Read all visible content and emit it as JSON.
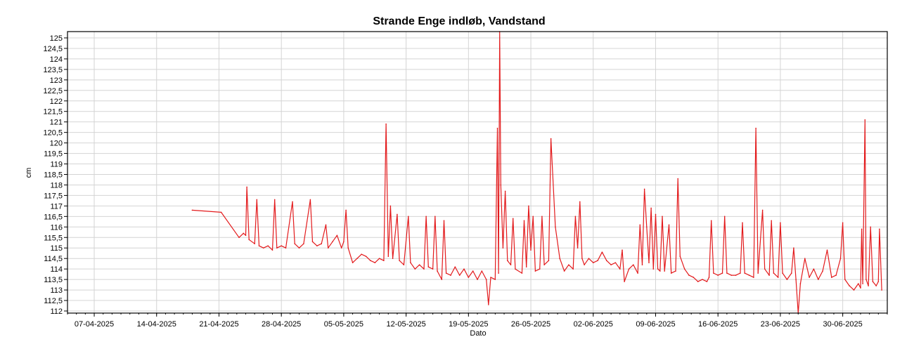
{
  "chart_data": {
    "type": "line",
    "title": "Strande Enge indløb, Vandstand",
    "xlabel": "Dato",
    "ylabel": "cm",
    "x_type": "date",
    "xlim": [
      "2025-04-04",
      "2025-07-05"
    ],
    "ylim": [
      111.9,
      125.3
    ],
    "grid": true,
    "legend": "none",
    "line_color": "#e31a1c",
    "x_ticks": [
      {
        "date": "2025-04-07",
        "label": "07-04-2025"
      },
      {
        "date": "2025-04-14",
        "label": "14-04-2025"
      },
      {
        "date": "2025-04-21",
        "label": "21-04-2025"
      },
      {
        "date": "2025-04-28",
        "label": "28-04-2025"
      },
      {
        "date": "2025-05-05",
        "label": "05-05-2025"
      },
      {
        "date": "2025-05-12",
        "label": "12-05-2025"
      },
      {
        "date": "2025-05-19",
        "label": "19-05-2025"
      },
      {
        "date": "2025-05-26",
        "label": "26-05-2025"
      },
      {
        "date": "2025-06-02",
        "label": "02-06-2025"
      },
      {
        "date": "2025-06-09",
        "label": "09-06-2025"
      },
      {
        "date": "2025-06-16",
        "label": "16-06-2025"
      },
      {
        "date": "2025-06-23",
        "label": "23-06-2025"
      },
      {
        "date": "2025-06-30",
        "label": "30-06-2025"
      }
    ],
    "y_ticks": [
      {
        "value": 112,
        "label": "112"
      },
      {
        "value": 112.5,
        "label": "112,5"
      },
      {
        "value": 113,
        "label": "113"
      },
      {
        "value": 113.5,
        "label": "113,5"
      },
      {
        "value": 114,
        "label": "114"
      },
      {
        "value": 114.5,
        "label": "114,5"
      },
      {
        "value": 115,
        "label": "115"
      },
      {
        "value": 115.5,
        "label": "115,5"
      },
      {
        "value": 116,
        "label": "116"
      },
      {
        "value": 116.5,
        "label": "116,5"
      },
      {
        "value": 117,
        "label": "117"
      },
      {
        "value": 117.5,
        "label": "117,5"
      },
      {
        "value": 118,
        "label": "118"
      },
      {
        "value": 118.5,
        "label": "118,5"
      },
      {
        "value": 119,
        "label": "119"
      },
      {
        "value": 119.5,
        "label": "119,5"
      },
      {
        "value": 120,
        "label": "120"
      },
      {
        "value": 120.5,
        "label": "120,5"
      },
      {
        "value": 121,
        "label": "121"
      },
      {
        "value": 121.5,
        "label": "121,5"
      },
      {
        "value": 122,
        "label": "122"
      },
      {
        "value": 122.5,
        "label": "122,5"
      },
      {
        "value": 123,
        "label": "123"
      },
      {
        "value": 123.5,
        "label": "123,5"
      },
      {
        "value": 124,
        "label": "124"
      },
      {
        "value": 124.5,
        "label": "124,5"
      },
      {
        "value": 125,
        "label": "125"
      }
    ],
    "series": [
      {
        "points": [
          [
            "2025-04-18 00:00",
            116.8
          ],
          [
            "2025-04-21 06:00",
            116.7
          ],
          [
            "2025-04-23 06:00",
            115.5
          ],
          [
            "2025-04-23 18:00",
            115.7
          ],
          [
            "2025-04-24 00:00",
            115.6
          ],
          [
            "2025-04-24 03:00",
            117.9
          ],
          [
            "2025-04-24 09:00",
            115.4
          ],
          [
            "2025-04-25 00:00",
            115.2
          ],
          [
            "2025-04-25 06:00",
            117.3
          ],
          [
            "2025-04-25 12:00",
            115.1
          ],
          [
            "2025-04-26 00:00",
            115.0
          ],
          [
            "2025-04-26 12:00",
            115.1
          ],
          [
            "2025-04-27 00:00",
            114.9
          ],
          [
            "2025-04-27 06:00",
            117.3
          ],
          [
            "2025-04-27 12:00",
            115.0
          ],
          [
            "2025-04-28 00:00",
            115.1
          ],
          [
            "2025-04-28 12:00",
            115.0
          ],
          [
            "2025-04-29 06:00",
            117.2
          ],
          [
            "2025-04-29 12:00",
            115.2
          ],
          [
            "2025-04-30 00:00",
            115.0
          ],
          [
            "2025-04-30 12:00",
            115.2
          ],
          [
            "2025-05-01 06:00",
            117.3
          ],
          [
            "2025-05-01 12:00",
            115.3
          ],
          [
            "2025-05-02 00:00",
            115.1
          ],
          [
            "2025-05-02 12:00",
            115.2
          ],
          [
            "2025-05-03 00:00",
            116.1
          ],
          [
            "2025-05-03 06:00",
            115.0
          ],
          [
            "2025-05-03 18:00",
            115.3
          ],
          [
            "2025-05-04 06:00",
            115.6
          ],
          [
            "2025-05-04 18:00",
            115.0
          ],
          [
            "2025-05-05 00:00",
            115.3
          ],
          [
            "2025-05-05 06:00",
            116.8
          ],
          [
            "2025-05-05 12:00",
            115.0
          ],
          [
            "2025-05-06 00:00",
            114.3
          ],
          [
            "2025-05-06 12:00",
            114.5
          ],
          [
            "2025-05-07 00:00",
            114.7
          ],
          [
            "2025-05-07 12:00",
            114.6
          ],
          [
            "2025-05-08 00:00",
            114.4
          ],
          [
            "2025-05-08 12:00",
            114.3
          ],
          [
            "2025-05-09 00:00",
            114.5
          ],
          [
            "2025-05-09 12:00",
            114.4
          ],
          [
            "2025-05-09 18:00",
            120.9
          ],
          [
            "2025-05-10 00:00",
            114.6
          ],
          [
            "2025-05-10 06:00",
            117.0
          ],
          [
            "2025-05-10 12:00",
            114.5
          ],
          [
            "2025-05-11 00:00",
            116.6
          ],
          [
            "2025-05-11 06:00",
            114.4
          ],
          [
            "2025-05-11 18:00",
            114.2
          ],
          [
            "2025-05-12 06:00",
            116.5
          ],
          [
            "2025-05-12 12:00",
            114.3
          ],
          [
            "2025-05-13 00:00",
            114.0
          ],
          [
            "2025-05-13 12:00",
            114.2
          ],
          [
            "2025-05-14 00:00",
            114.0
          ],
          [
            "2025-05-14 06:00",
            116.5
          ],
          [
            "2025-05-14 12:00",
            114.1
          ],
          [
            "2025-05-15 00:00",
            114.0
          ],
          [
            "2025-05-15 06:00",
            116.5
          ],
          [
            "2025-05-15 12:00",
            113.9
          ],
          [
            "2025-05-16 00:00",
            113.5
          ],
          [
            "2025-05-16 06:00",
            116.3
          ],
          [
            "2025-05-16 12:00",
            113.8
          ],
          [
            "2025-05-17 00:00",
            113.7
          ],
          [
            "2025-05-17 12:00",
            114.1
          ],
          [
            "2025-05-18 00:00",
            113.7
          ],
          [
            "2025-05-18 12:00",
            114.0
          ],
          [
            "2025-05-19 00:00",
            113.6
          ],
          [
            "2025-05-19 12:00",
            113.9
          ],
          [
            "2025-05-20 00:00",
            113.5
          ],
          [
            "2025-05-20 12:00",
            113.9
          ],
          [
            "2025-05-21 00:00",
            113.5
          ],
          [
            "2025-05-21 06:00",
            112.3
          ],
          [
            "2025-05-21 12:00",
            113.6
          ],
          [
            "2025-05-22 00:00",
            113.5
          ],
          [
            "2025-05-22 06:00",
            120.7
          ],
          [
            "2025-05-22 09:00",
            113.8
          ],
          [
            "2025-05-22 12:00",
            125.3
          ],
          [
            "2025-05-22 15:00",
            118.0
          ],
          [
            "2025-05-22 21:00",
            115.0
          ],
          [
            "2025-05-23 03:00",
            117.7
          ],
          [
            "2025-05-23 09:00",
            114.4
          ],
          [
            "2025-05-23 18:00",
            114.2
          ],
          [
            "2025-05-24 00:00",
            116.4
          ],
          [
            "2025-05-24 06:00",
            114.0
          ],
          [
            "2025-05-25 00:00",
            113.8
          ],
          [
            "2025-05-25 06:00",
            116.3
          ],
          [
            "2025-05-25 12:00",
            114.1
          ],
          [
            "2025-05-25 18:00",
            117.0
          ],
          [
            "2025-05-26 00:00",
            114.9
          ],
          [
            "2025-05-26 06:00",
            116.5
          ],
          [
            "2025-05-26 12:00",
            113.9
          ],
          [
            "2025-05-27 00:00",
            114.0
          ],
          [
            "2025-05-27 06:00",
            116.5
          ],
          [
            "2025-05-27 12:00",
            114.2
          ],
          [
            "2025-05-28 00:00",
            114.4
          ],
          [
            "2025-05-28 06:00",
            120.2
          ],
          [
            "2025-05-28 18:00",
            116.0
          ],
          [
            "2025-05-29 06:00",
            114.5
          ],
          [
            "2025-05-29 18:00",
            113.9
          ],
          [
            "2025-05-30 06:00",
            114.2
          ],
          [
            "2025-05-30 18:00",
            114.0
          ],
          [
            "2025-05-31 00:00",
            116.5
          ],
          [
            "2025-05-31 06:00",
            115.0
          ],
          [
            "2025-05-31 12:00",
            117.2
          ],
          [
            "2025-05-31 18:00",
            114.5
          ],
          [
            "2025-06-01 00:00",
            114.2
          ],
          [
            "2025-06-01 12:00",
            114.5
          ],
          [
            "2025-06-02 00:00",
            114.3
          ],
          [
            "2025-06-02 12:00",
            114.4
          ],
          [
            "2025-06-03 00:00",
            114.8
          ],
          [
            "2025-06-03 12:00",
            114.4
          ],
          [
            "2025-06-04 00:00",
            114.2
          ],
          [
            "2025-06-04 12:00",
            114.3
          ],
          [
            "2025-06-05 00:00",
            114.0
          ],
          [
            "2025-06-05 06:00",
            114.9
          ],
          [
            "2025-06-05 12:00",
            113.4
          ],
          [
            "2025-06-06 00:00",
            114.0
          ],
          [
            "2025-06-06 12:00",
            114.2
          ],
          [
            "2025-06-07 00:00",
            113.8
          ],
          [
            "2025-06-07 06:00",
            116.1
          ],
          [
            "2025-06-07 12:00",
            114.2
          ],
          [
            "2025-06-07 18:00",
            117.8
          ],
          [
            "2025-06-08 00:00",
            116.0
          ],
          [
            "2025-06-08 06:00",
            114.3
          ],
          [
            "2025-06-08 12:00",
            116.9
          ],
          [
            "2025-06-08 18:00",
            114.0
          ],
          [
            "2025-06-09 00:00",
            116.6
          ],
          [
            "2025-06-09 06:00",
            114.0
          ],
          [
            "2025-06-09 12:00",
            113.9
          ],
          [
            "2025-06-09 18:00",
            116.5
          ],
          [
            "2025-06-10 00:00",
            113.9
          ],
          [
            "2025-06-10 12:00",
            116.1
          ],
          [
            "2025-06-10 18:00",
            113.8
          ],
          [
            "2025-06-11 06:00",
            113.9
          ],
          [
            "2025-06-11 12:00",
            118.3
          ],
          [
            "2025-06-11 18:00",
            114.6
          ],
          [
            "2025-06-12 06:00",
            114.0
          ],
          [
            "2025-06-12 18:00",
            113.7
          ],
          [
            "2025-06-13 06:00",
            113.6
          ],
          [
            "2025-06-13 18:00",
            113.4
          ],
          [
            "2025-06-14 06:00",
            113.5
          ],
          [
            "2025-06-14 18:00",
            113.4
          ],
          [
            "2025-06-15 00:00",
            113.6
          ],
          [
            "2025-06-15 06:00",
            116.3
          ],
          [
            "2025-06-15 12:00",
            113.8
          ],
          [
            "2025-06-16 00:00",
            113.7
          ],
          [
            "2025-06-16 12:00",
            113.8
          ],
          [
            "2025-06-16 18:00",
            116.5
          ],
          [
            "2025-06-17 00:00",
            113.8
          ],
          [
            "2025-06-17 12:00",
            113.7
          ],
          [
            "2025-06-18 00:00",
            113.7
          ],
          [
            "2025-06-18 12:00",
            113.8
          ],
          [
            "2025-06-18 18:00",
            116.2
          ],
          [
            "2025-06-19 00:00",
            113.8
          ],
          [
            "2025-06-19 12:00",
            113.7
          ],
          [
            "2025-06-20 00:00",
            113.6
          ],
          [
            "2025-06-20 06:00",
            120.7
          ],
          [
            "2025-06-20 12:00",
            113.8
          ],
          [
            "2025-06-21 00:00",
            116.8
          ],
          [
            "2025-06-21 06:00",
            114.0
          ],
          [
            "2025-06-21 18:00",
            113.7
          ],
          [
            "2025-06-22 00:00",
            116.3
          ],
          [
            "2025-06-22 06:00",
            113.8
          ],
          [
            "2025-06-22 18:00",
            113.6
          ],
          [
            "2025-06-23 00:00",
            116.2
          ],
          [
            "2025-06-23 06:00",
            113.8
          ],
          [
            "2025-06-23 18:00",
            113.5
          ],
          [
            "2025-06-24 06:00",
            113.8
          ],
          [
            "2025-06-24 12:00",
            115.0
          ],
          [
            "2025-06-24 18:00",
            113.5
          ],
          [
            "2025-06-25 00:00",
            111.9
          ],
          [
            "2025-06-25 06:00",
            113.3
          ],
          [
            "2025-06-25 18:00",
            114.5
          ],
          [
            "2025-06-26 06:00",
            113.6
          ],
          [
            "2025-06-26 18:00",
            114.0
          ],
          [
            "2025-06-27 06:00",
            113.5
          ],
          [
            "2025-06-27 18:00",
            113.9
          ],
          [
            "2025-06-28 06:00",
            114.9
          ],
          [
            "2025-06-28 18:00",
            113.6
          ],
          [
            "2025-06-29 06:00",
            113.7
          ],
          [
            "2025-06-29 18:00",
            114.5
          ],
          [
            "2025-06-30 00:00",
            116.2
          ],
          [
            "2025-06-30 06:00",
            113.5
          ],
          [
            "2025-06-30 18:00",
            113.2
          ],
          [
            "2025-07-01 06:00",
            113.0
          ],
          [
            "2025-07-01 18:00",
            113.3
          ],
          [
            "2025-07-02 00:00",
            113.1
          ],
          [
            "2025-07-02 03:00",
            115.9
          ],
          [
            "2025-07-02 06:00",
            113.3
          ],
          [
            "2025-07-02 12:00",
            121.1
          ],
          [
            "2025-07-02 15:00",
            113.5
          ],
          [
            "2025-07-02 21:00",
            113.2
          ],
          [
            "2025-07-03 03:00",
            116.0
          ],
          [
            "2025-07-03 09:00",
            113.4
          ],
          [
            "2025-07-03 18:00",
            113.2
          ],
          [
            "2025-07-04 00:00",
            113.4
          ],
          [
            "2025-07-04 03:00",
            115.9
          ],
          [
            "2025-07-04 09:00",
            113.0
          ]
        ]
      }
    ]
  }
}
